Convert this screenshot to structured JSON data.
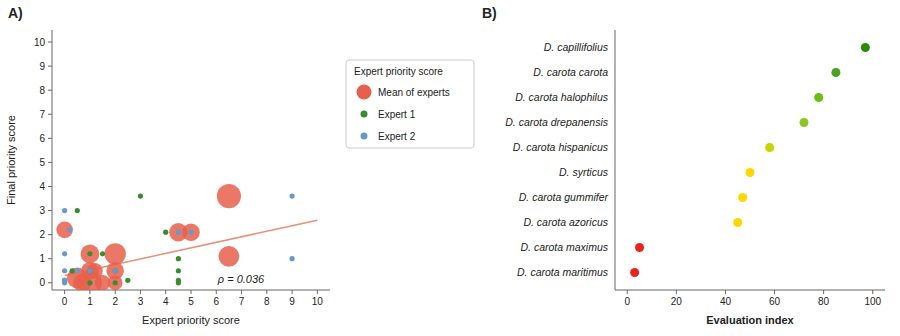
{
  "chart_data": [
    {
      "type": "scatter",
      "title": "A)",
      "xlabel": "Expert priority score",
      "ylabel": "Final priority score",
      "xlim": [
        -0.5,
        10.5
      ],
      "ylim": [
        -0.3,
        10.5
      ],
      "xticks": [
        0,
        1,
        2,
        3,
        4,
        5,
        6,
        7,
        8,
        9,
        10
      ],
      "yticks": [
        0,
        1,
        2,
        3,
        4,
        5,
        6,
        7,
        8,
        9,
        10
      ],
      "grid": false,
      "legend": "right",
      "legend_title": "Expert priority score",
      "annotations": [
        "ρ = 0.036"
      ],
      "trendline": {
        "x": [
          0,
          10
        ],
        "values": [
          0.3,
          2.6
        ],
        "color": "#E8907A"
      },
      "series": [
        {
          "name": "Mean of experts",
          "color": "#E8604C",
          "x": [
            0.0,
            0.5,
            0.7,
            1.0,
            1.0,
            1.0,
            1.2,
            1.5,
            2.0,
            2.0,
            2.0,
            4.5,
            5.0,
            6.5,
            6.5
          ],
          "values": [
            2.2,
            0.2,
            0.0,
            0.0,
            0.5,
            1.2,
            0.5,
            0.0,
            0.0,
            0.5,
            1.2,
            2.1,
            2.1,
            3.6,
            1.1
          ],
          "sizes": [
            180,
            280,
            220,
            380,
            200,
            230,
            160,
            160,
            140,
            200,
            300,
            220,
            200,
            380,
            280
          ]
        },
        {
          "name": "Expert 1",
          "color": "#3A8C2F",
          "x": [
            0.0,
            0.3,
            0.5,
            1.0,
            1.0,
            1.0,
            1.5,
            2.0,
            2.0,
            2.5,
            3.0,
            4.0,
            4.5,
            4.5,
            4.5,
            4.5
          ],
          "values": [
            0.1,
            0.5,
            3.0,
            1.2,
            0.5,
            0.0,
            1.2,
            0.5,
            0.0,
            0.1,
            3.6,
            2.1,
            0.5,
            1.0,
            0.0,
            0.1
          ]
        },
        {
          "name": "Expert 2",
          "color": "#6699CC",
          "x": [
            0.0,
            0.0,
            0.0,
            0.0,
            0.0,
            0.2,
            0.5,
            1.0,
            2.0,
            4.5,
            5.0,
            9.0,
            9.0
          ],
          "values": [
            0.0,
            0.1,
            0.5,
            1.2,
            3.0,
            2.2,
            0.5,
            0.5,
            0.5,
            2.1,
            2.1,
            3.6,
            1.0
          ]
        }
      ]
    },
    {
      "type": "dot",
      "title": "B)",
      "orientation": "horizontal",
      "xlabel": "Evaluation index",
      "xlim": [
        -5,
        105
      ],
      "xticks": [
        0,
        20,
        40,
        60,
        80,
        100
      ],
      "grid": false,
      "categories": [
        "D. carota maritimus",
        "D. carota maximus",
        "D. carota azoricus",
        "D. carota gummifer",
        "D. syrticus",
        "D. carota hispanicus",
        "D. carota drepanensis",
        "D. carota halophilus",
        "D. carota carota",
        "D. capillifolius"
      ],
      "values": [
        3,
        5,
        45,
        47,
        50,
        58,
        72,
        78,
        85,
        97
      ],
      "colors": [
        "#E8241C",
        "#E8241C",
        "#FFD700",
        "#FFD700",
        "#FFD700",
        "#C8D400",
        "#8CC820",
        "#6BBF10",
        "#4EA020",
        "#2E8B0A"
      ]
    }
  ]
}
